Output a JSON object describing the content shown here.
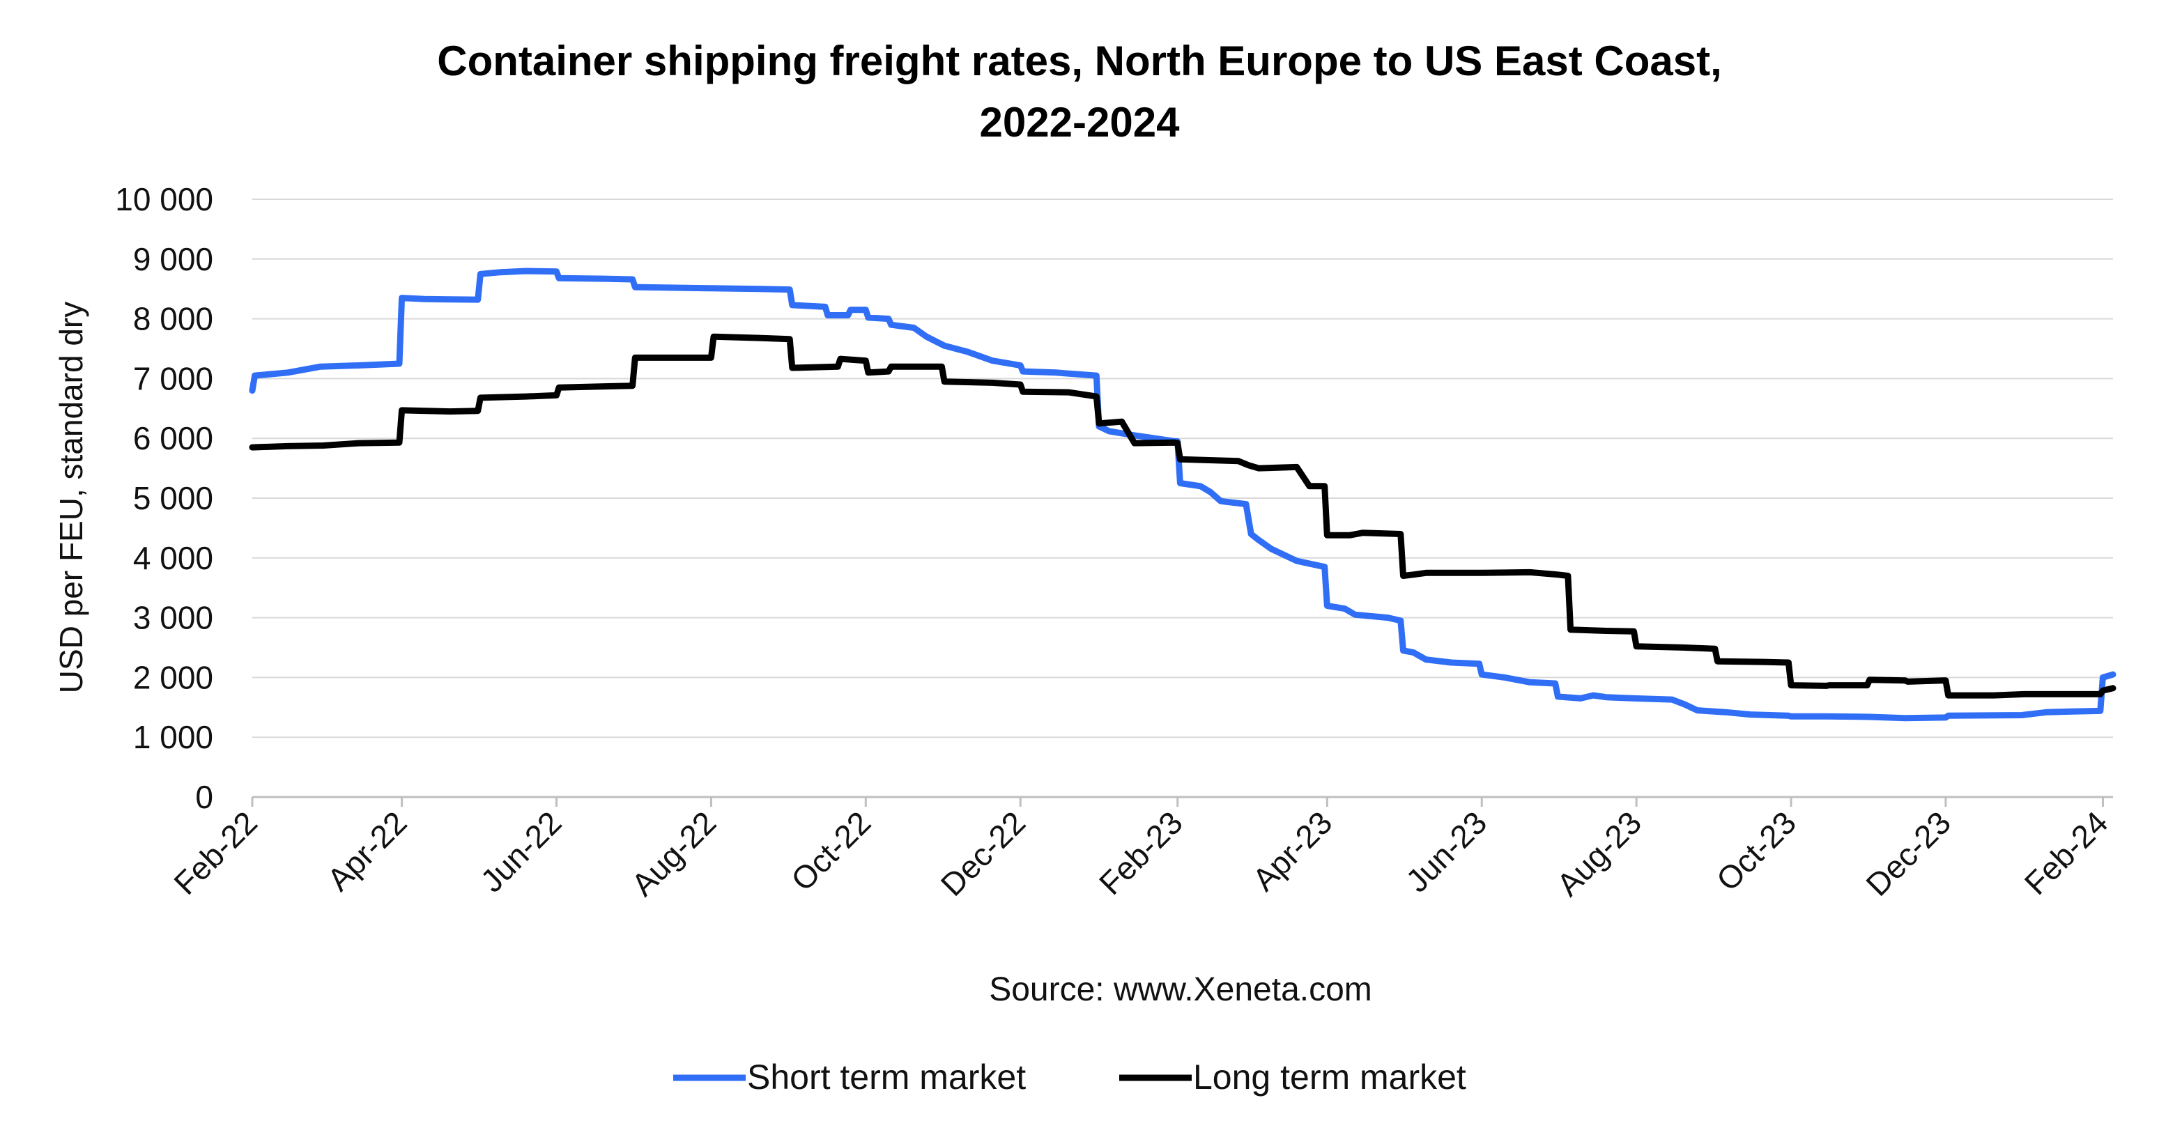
{
  "chart_data": {
    "type": "line",
    "title": "Container shipping freight rates, North Europe to US East Coast,",
    "subtitle": "2022-2024",
    "ylabel": "USD per FEU, standard dry",
    "xlabel": "",
    "source": "Source: www.Xeneta.com",
    "ylim": [
      0,
      10000
    ],
    "xlim": [
      "2022-02-01",
      "2024-02-05"
    ],
    "y_ticks": [
      0,
      1000,
      2000,
      3000,
      4000,
      5000,
      6000,
      7000,
      8000,
      9000,
      10000
    ],
    "y_tick_labels": [
      "0",
      "1 000",
      "2 000",
      "3 000",
      "4 000",
      "5 000",
      "6 000",
      "7 000",
      "8 000",
      "9 000",
      "10 000"
    ],
    "x_ticks": [
      "2022-02-01",
      "2022-04-01",
      "2022-06-01",
      "2022-08-01",
      "2022-10-01",
      "2022-12-01",
      "2023-02-01",
      "2023-04-01",
      "2023-06-01",
      "2023-08-01",
      "2023-10-01",
      "2023-12-01",
      "2024-02-01"
    ],
    "x_tick_labels": [
      "Feb-22",
      "Apr-22",
      "Jun-22",
      "Aug-22",
      "Oct-22",
      "Dec-22",
      "Feb-23",
      "Apr-23",
      "Jun-23",
      "Aug-23",
      "Oct-23",
      "Dec-23",
      "Feb-24"
    ],
    "grid": true,
    "legend_position": "bottom",
    "series": [
      {
        "name": "Short term market",
        "color": "#2f6ef5",
        "points": [
          [
            "2022-02-01",
            6800
          ],
          [
            "2022-02-02",
            7050
          ],
          [
            "2022-02-15",
            7100
          ],
          [
            "2022-02-28",
            7200
          ],
          [
            "2022-03-15",
            7220
          ],
          [
            "2022-03-31",
            7250
          ],
          [
            "2022-04-01",
            8350
          ],
          [
            "2022-04-10",
            8330
          ],
          [
            "2022-05-01",
            8320
          ],
          [
            "2022-05-02",
            8750
          ],
          [
            "2022-05-10",
            8780
          ],
          [
            "2022-05-20",
            8800
          ],
          [
            "2022-06-01",
            8790
          ],
          [
            "2022-06-02",
            8680
          ],
          [
            "2022-06-20",
            8670
          ],
          [
            "2022-07-01",
            8660
          ],
          [
            "2022-07-02",
            8530
          ],
          [
            "2022-08-01",
            8510
          ],
          [
            "2022-08-20",
            8500
          ],
          [
            "2022-09-01",
            8490
          ],
          [
            "2022-09-02",
            8230
          ],
          [
            "2022-09-15",
            8200
          ],
          [
            "2022-09-16",
            8060
          ],
          [
            "2022-09-24",
            8060
          ],
          [
            "2022-09-25",
            8150
          ],
          [
            "2022-10-01",
            8150
          ],
          [
            "2022-10-02",
            8020
          ],
          [
            "2022-10-10",
            8000
          ],
          [
            "2022-10-11",
            7900
          ],
          [
            "2022-10-20",
            7850
          ],
          [
            "2022-10-25",
            7700
          ],
          [
            "2022-11-01",
            7550
          ],
          [
            "2022-11-10",
            7450
          ],
          [
            "2022-11-20",
            7300
          ],
          [
            "2022-12-01",
            7220
          ],
          [
            "2022-12-02",
            7120
          ],
          [
            "2022-12-15",
            7100
          ],
          [
            "2022-12-31",
            7050
          ],
          [
            "2023-01-01",
            6200
          ],
          [
            "2023-01-05",
            6120
          ],
          [
            "2023-01-15",
            6050
          ],
          [
            "2023-01-31",
            5950
          ],
          [
            "2023-02-01",
            5950
          ],
          [
            "2023-02-02",
            5250
          ],
          [
            "2023-02-10",
            5200
          ],
          [
            "2023-02-14",
            5100
          ],
          [
            "2023-02-18",
            4950
          ],
          [
            "2023-02-28",
            4900
          ],
          [
            "2023-03-02",
            4400
          ],
          [
            "2023-03-05",
            4300
          ],
          [
            "2023-03-10",
            4150
          ],
          [
            "2023-03-20",
            3950
          ],
          [
            "2023-03-31",
            3850
          ],
          [
            "2023-04-01",
            3200
          ],
          [
            "2023-04-08",
            3150
          ],
          [
            "2023-04-12",
            3050
          ],
          [
            "2023-04-25",
            3000
          ],
          [
            "2023-04-30",
            2950
          ],
          [
            "2023-05-01",
            2450
          ],
          [
            "2023-05-05",
            2420
          ],
          [
            "2023-05-10",
            2300
          ],
          [
            "2023-05-20",
            2250
          ],
          [
            "2023-05-31",
            2230
          ],
          [
            "2023-06-01",
            2050
          ],
          [
            "2023-06-10",
            2000
          ],
          [
            "2023-06-20",
            1920
          ],
          [
            "2023-06-30",
            1900
          ],
          [
            "2023-07-01",
            1680
          ],
          [
            "2023-07-10",
            1650
          ],
          [
            "2023-07-15",
            1700
          ],
          [
            "2023-07-20",
            1670
          ],
          [
            "2023-07-31",
            1650
          ],
          [
            "2023-08-15",
            1630
          ],
          [
            "2023-08-20",
            1550
          ],
          [
            "2023-08-25",
            1450
          ],
          [
            "2023-09-05",
            1420
          ],
          [
            "2023-09-15",
            1380
          ],
          [
            "2023-09-30",
            1360
          ],
          [
            "2023-10-01",
            1350
          ],
          [
            "2023-10-15",
            1350
          ],
          [
            "2023-11-01",
            1340
          ],
          [
            "2023-11-15",
            1320
          ],
          [
            "2023-12-01",
            1330
          ],
          [
            "2023-12-02",
            1360
          ],
          [
            "2023-12-31",
            1370
          ],
          [
            "2024-01-10",
            1420
          ],
          [
            "2024-01-20",
            1430
          ],
          [
            "2024-01-31",
            1440
          ],
          [
            "2024-02-01",
            2000
          ],
          [
            "2024-02-05",
            2050
          ]
        ]
      },
      {
        "name": "Long term market",
        "color": "#000000",
        "points": [
          [
            "2022-02-01",
            5850
          ],
          [
            "2022-02-15",
            5870
          ],
          [
            "2022-03-01",
            5880
          ],
          [
            "2022-03-15",
            5920
          ],
          [
            "2022-03-31",
            5930
          ],
          [
            "2022-04-01",
            6470
          ],
          [
            "2022-04-20",
            6450
          ],
          [
            "2022-05-01",
            6460
          ],
          [
            "2022-05-02",
            6680
          ],
          [
            "2022-05-20",
            6700
          ],
          [
            "2022-06-01",
            6720
          ],
          [
            "2022-06-02",
            6850
          ],
          [
            "2022-06-20",
            6870
          ],
          [
            "2022-07-01",
            6880
          ],
          [
            "2022-07-02",
            7350
          ],
          [
            "2022-07-20",
            7350
          ],
          [
            "2022-08-01",
            7350
          ],
          [
            "2022-08-02",
            7700
          ],
          [
            "2022-08-20",
            7680
          ],
          [
            "2022-09-01",
            7660
          ],
          [
            "2022-09-02",
            7180
          ],
          [
            "2022-09-20",
            7200
          ],
          [
            "2022-09-21",
            7330
          ],
          [
            "2022-10-01",
            7300
          ],
          [
            "2022-10-02",
            7100
          ],
          [
            "2022-10-10",
            7120
          ],
          [
            "2022-10-11",
            7200
          ],
          [
            "2022-10-31",
            7200
          ],
          [
            "2022-11-01",
            6950
          ],
          [
            "2022-11-20",
            6930
          ],
          [
            "2022-12-01",
            6900
          ],
          [
            "2022-12-02",
            6780
          ],
          [
            "2022-12-20",
            6770
          ],
          [
            "2022-12-31",
            6700
          ],
          [
            "2023-01-01",
            6250
          ],
          [
            "2023-01-10",
            6280
          ],
          [
            "2023-01-15",
            5920
          ],
          [
            "2023-01-31",
            5930
          ],
          [
            "2023-02-01",
            5920
          ],
          [
            "2023-02-02",
            5650
          ],
          [
            "2023-02-25",
            5620
          ],
          [
            "2023-03-01",
            5550
          ],
          [
            "2023-03-05",
            5500
          ],
          [
            "2023-03-20",
            5520
          ],
          [
            "2023-03-25",
            5200
          ],
          [
            "2023-03-31",
            5200
          ],
          [
            "2023-04-01",
            4380
          ],
          [
            "2023-04-10",
            4380
          ],
          [
            "2023-04-15",
            4420
          ],
          [
            "2023-04-30",
            4400
          ],
          [
            "2023-05-01",
            3700
          ],
          [
            "2023-05-05",
            3720
          ],
          [
            "2023-05-10",
            3750
          ],
          [
            "2023-06-01",
            3750
          ],
          [
            "2023-06-20",
            3760
          ],
          [
            "2023-07-01",
            3720
          ],
          [
            "2023-07-05",
            3700
          ],
          [
            "2023-07-06",
            2800
          ],
          [
            "2023-07-20",
            2780
          ],
          [
            "2023-07-31",
            2770
          ],
          [
            "2023-08-01",
            2520
          ],
          [
            "2023-08-20",
            2500
          ],
          [
            "2023-09-01",
            2480
          ],
          [
            "2023-09-02",
            2270
          ],
          [
            "2023-09-20",
            2260
          ],
          [
            "2023-09-30",
            2250
          ],
          [
            "2023-10-01",
            1870
          ],
          [
            "2023-10-15",
            1860
          ],
          [
            "2023-10-16",
            1870
          ],
          [
            "2023-10-31",
            1870
          ],
          [
            "2023-11-01",
            1960
          ],
          [
            "2023-11-15",
            1950
          ],
          [
            "2023-11-16",
            1930
          ],
          [
            "2023-11-30",
            1950
          ],
          [
            "2023-12-01",
            1950
          ],
          [
            "2023-12-02",
            1700
          ],
          [
            "2023-12-20",
            1700
          ],
          [
            "2024-01-01",
            1720
          ],
          [
            "2024-01-31",
            1720
          ],
          [
            "2024-02-01",
            1780
          ],
          [
            "2024-02-05",
            1820
          ]
        ]
      }
    ]
  }
}
